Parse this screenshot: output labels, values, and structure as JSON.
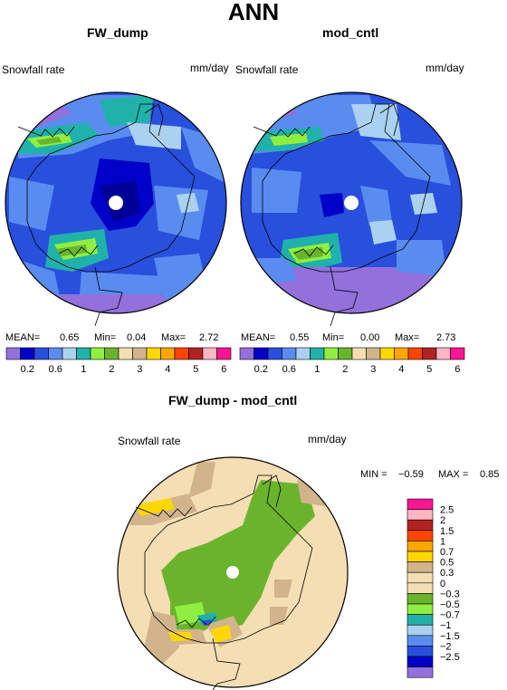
{
  "title": "ANN",
  "panels": [
    {
      "title": "FW_dump",
      "variable": "Snowfall rate",
      "units": "mm/day",
      "stats": {
        "mean_label": "MEAN=",
        "mean": "0.65",
        "min_label": "Min=",
        "min": "0.04",
        "max_label": "Max=",
        "max": "2.72"
      }
    },
    {
      "title": "mod_cntl",
      "variable": "Snowfall rate",
      "units": "mm/day",
      "stats": {
        "mean_label": "MEAN=",
        "mean": "0.55",
        "min_label": "Min=",
        "min": "0.00",
        "max_label": "Max=",
        "max": "2.73"
      }
    }
  ],
  "abs_colorbar": {
    "labels": [
      "0.2",
      "0.6",
      "1",
      "2",
      "3",
      "4",
      "5",
      "6"
    ],
    "colors": [
      "#9370db",
      "#0000c8",
      "#2850dc",
      "#5a8cf0",
      "#aad2f0",
      "#20b2aa",
      "#90ee40",
      "#6ab42d",
      "#f5deb3",
      "#d2b48c",
      "#ffd700",
      "#ffa500",
      "#ff4500",
      "#b22222",
      "#ffb6c1",
      "#ff1493"
    ]
  },
  "diff_panel": {
    "title": "FW_dump - mod_cntl",
    "variable": "Snowfall rate",
    "units": "mm/day",
    "stats": {
      "min_label": "MIN =",
      "min": "−0.59",
      "max_label": "MAX =",
      "max": "0.85"
    }
  },
  "diff_colorbar": {
    "labels": [
      "2.5",
      "2",
      "1.5",
      "1",
      "0.7",
      "0.5",
      "0.3",
      "0",
      "−0.3",
      "−0.5",
      "−0.7",
      "−1",
      "−1.5",
      "−2",
      "−2.5"
    ],
    "colors_top_to_bottom": [
      "#ff1493",
      "#ffb6c1",
      "#b22222",
      "#ff4500",
      "#ffa500",
      "#ffd700",
      "#d2b48c",
      "#f5deb3",
      "#f5deb3",
      "#6ab42d",
      "#90ee40",
      "#20b2aa",
      "#aad2f0",
      "#5a8cf0",
      "#2850dc",
      "#0000c8",
      "#9370db"
    ]
  }
}
